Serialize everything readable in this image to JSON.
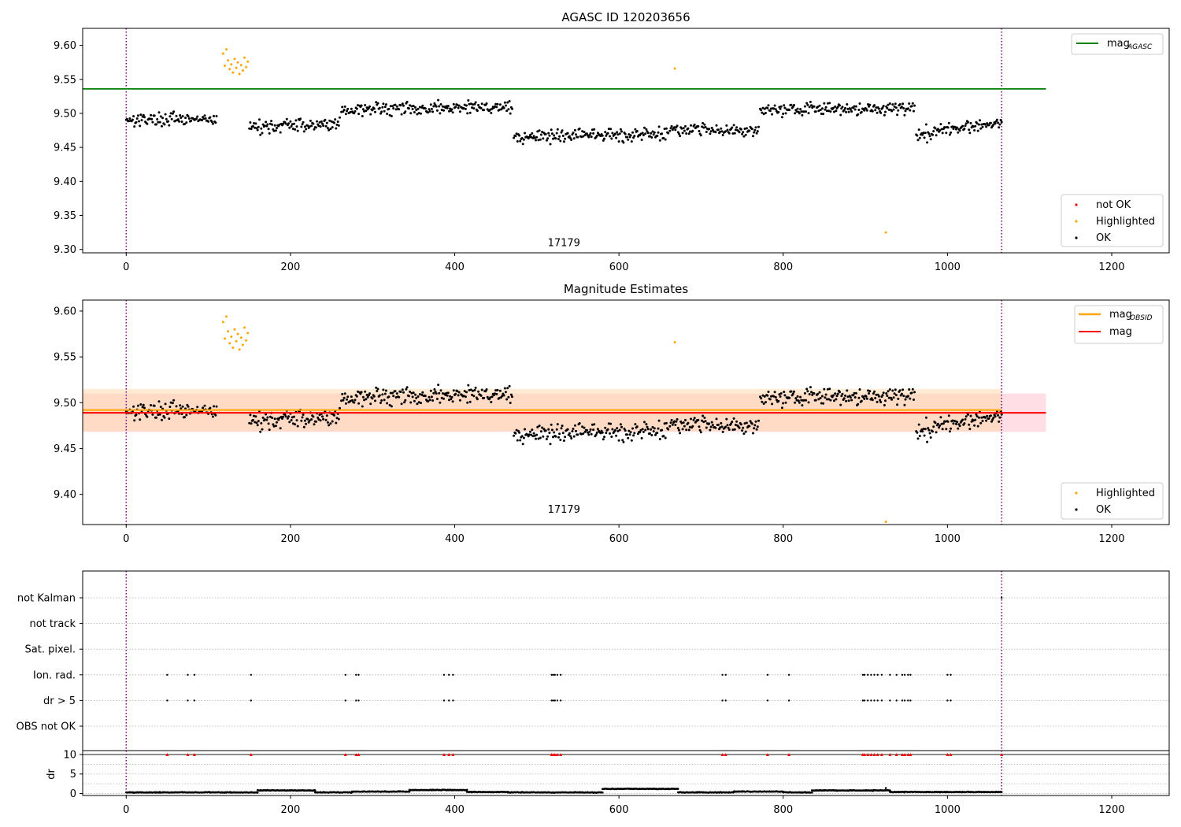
{
  "chart_data": [
    {
      "type": "scatter",
      "title": "AGASC ID 120203656",
      "xlim": [
        -53,
        1270
      ],
      "ylim": [
        9.295,
        9.625
      ],
      "xticks": [
        0,
        200,
        400,
        600,
        800,
        1000,
        1200
      ],
      "yticks": [
        9.3,
        9.35,
        9.4,
        9.45,
        9.5,
        9.55,
        9.6
      ],
      "grid": false,
      "annotation": {
        "text": "17179",
        "x": 533,
        "y": 9.305
      },
      "vlines": [
        0,
        1066
      ],
      "hline": {
        "name": "mag",
        "subscript": "AGASC",
        "y": 9.536,
        "xmax": 1120,
        "color": "#008000"
      },
      "legends": [
        {
          "placement": "top-right",
          "entries": [
            {
              "label": "mag",
              "subscript": "AGASC",
              "kind": "line",
              "color": "#008000"
            }
          ]
        },
        {
          "placement": "bottom-right",
          "entries": [
            {
              "label": "not OK",
              "kind": "marker",
              "color": "#ff0000"
            },
            {
              "label": "Highlighted",
              "kind": "marker",
              "color": "#ffa500"
            },
            {
              "label": "OK",
              "kind": "marker",
              "color": "#000000"
            }
          ]
        }
      ],
      "series": [
        {
          "name": "OK",
          "color": "#000000",
          "segments": [
            {
              "x": [
                0,
                110
              ],
              "y": [
                9.492,
                9.49
              ]
            },
            {
              "x": [
                150,
                260
              ],
              "y": [
                9.48,
                9.485
              ]
            },
            {
              "x": [
                262,
                470
              ],
              "y": [
                9.505,
                9.51
              ]
            },
            {
              "x": [
                472,
                660
              ],
              "y": [
                9.465,
                9.47
              ]
            },
            {
              "x": [
                662,
                770
              ],
              "y": [
                9.478,
                9.475
              ]
            },
            {
              "x": [
                772,
                960
              ],
              "y": [
                9.505,
                9.508
              ]
            },
            {
              "x": [
                962,
                1066
              ],
              "y": [
                9.468,
                9.488
              ]
            }
          ]
        },
        {
          "name": "Highlighted",
          "color": "#ffa500",
          "x": [
            118,
            120,
            122,
            124,
            126,
            128,
            130,
            132,
            134,
            136,
            138,
            140,
            142,
            144,
            146,
            148,
            668,
            925
          ],
          "y": [
            9.588,
            9.57,
            9.594,
            9.578,
            9.565,
            9.572,
            9.56,
            9.58,
            9.567,
            9.575,
            9.558,
            9.571,
            9.563,
            9.582,
            9.568,
            9.576,
            9.566,
            9.325
          ]
        }
      ]
    },
    {
      "type": "scatter",
      "title": "Magnitude Estimates",
      "xlim": [
        -53,
        1270
      ],
      "ylim": [
        9.367,
        9.612
      ],
      "xticks": [
        0,
        200,
        400,
        600,
        800,
        1000,
        1200
      ],
      "yticks": [
        9.4,
        9.45,
        9.5,
        9.55,
        9.6
      ],
      "grid": false,
      "annotation": {
        "text": "17179",
        "x": 533,
        "y": 9.38
      },
      "vlines": [
        0,
        1066
      ],
      "bands": [
        {
          "name": "mag",
          "ymin": 9.468,
          "ymax": 9.51,
          "xmax": 1120,
          "color": "#ffc0cb"
        },
        {
          "name": "mag OBSID",
          "ymin": 9.469,
          "ymax": 9.515,
          "xmax": 1066,
          "color": "#ffd7a8"
        }
      ],
      "lines": [
        {
          "name": "mag",
          "subscript": "OBSID",
          "y": 9.492,
          "xmax": 1066,
          "color": "#ffa500"
        },
        {
          "name": "mag",
          "y": 9.489,
          "xmax": 1120,
          "color": "#ff0000"
        }
      ],
      "legends": [
        {
          "placement": "top-right",
          "entries": [
            {
              "label": "mag",
              "subscript": "OBSID",
              "kind": "line",
              "color": "#ffa500"
            },
            {
              "label": "mag",
              "kind": "line",
              "color": "#ff0000"
            }
          ]
        },
        {
          "placement": "bottom-right",
          "entries": [
            {
              "label": "Highlighted",
              "kind": "marker",
              "color": "#ffa500"
            },
            {
              "label": "OK",
              "kind": "marker",
              "color": "#000000"
            }
          ]
        }
      ],
      "series": [
        {
          "name": "OK",
          "color": "#000000",
          "segments": [
            {
              "x": [
                0,
                110
              ],
              "y": [
                9.492,
                9.49
              ]
            },
            {
              "x": [
                150,
                260
              ],
              "y": [
                9.48,
                9.485
              ]
            },
            {
              "x": [
                262,
                470
              ],
              "y": [
                9.505,
                9.51
              ]
            },
            {
              "x": [
                472,
                660
              ],
              "y": [
                9.465,
                9.47
              ]
            },
            {
              "x": [
                662,
                770
              ],
              "y": [
                9.478,
                9.475
              ]
            },
            {
              "x": [
                772,
                960
              ],
              "y": [
                9.505,
                9.508
              ]
            },
            {
              "x": [
                962,
                1066
              ],
              "y": [
                9.468,
                9.488
              ]
            }
          ]
        },
        {
          "name": "Highlighted",
          "color": "#ffa500",
          "x": [
            118,
            120,
            122,
            124,
            126,
            128,
            130,
            132,
            134,
            136,
            138,
            140,
            142,
            144,
            146,
            148,
            668,
            925
          ],
          "y": [
            9.588,
            9.57,
            9.594,
            9.578,
            9.565,
            9.572,
            9.56,
            9.58,
            9.567,
            9.575,
            9.558,
            9.571,
            9.563,
            9.582,
            9.568,
            9.576,
            9.566,
            9.37
          ]
        }
      ]
    },
    {
      "type": "scatter",
      "title": "",
      "xlim": [
        -53,
        1270
      ],
      "xticks": [
        0,
        200,
        400,
        600,
        800,
        1000,
        1200
      ],
      "vlines": [
        0,
        1066
      ],
      "flags": {
        "categories": [
          "not Kalman",
          "not track",
          "Sat. pixel.",
          "Ion. rad.",
          "dr > 5",
          "OBS not OK"
        ],
        "x": [
          50,
          75,
          83,
          152,
          267,
          280,
          283,
          387,
          393,
          398,
          518,
          520,
          522,
          525,
          529,
          726,
          730,
          781,
          807,
          897,
          899,
          903,
          907,
          911,
          915,
          920,
          930,
          938,
          945,
          948,
          952,
          955,
          1000,
          1004
        ],
        "rows": [
          "Ion. rad.",
          "dr > 5"
        ],
        "extra": [
          {
            "row": "not Kalman",
            "x": 1066
          }
        ],
        "color": "#000000"
      },
      "dr": {
        "ylabel": "dr",
        "ylim": [
          -0.5,
          11
        ],
        "yticks": [
          0,
          5,
          10
        ],
        "threshold": 10,
        "gridlines": [
          0,
          2.5,
          5,
          7.5,
          10
        ],
        "markers": {
          "color": "#ff0000",
          "y": 10,
          "x": [
            50,
            75,
            83,
            152,
            267,
            280,
            283,
            387,
            393,
            398,
            518,
            520,
            522,
            525,
            529,
            726,
            730,
            781,
            807,
            897,
            899,
            903,
            907,
            911,
            915,
            920,
            930,
            938,
            945,
            948,
            952,
            955,
            1000,
            1004,
            1066
          ]
        },
        "segments": [
          {
            "x": [
              0,
              160
            ],
            "y": 0.3
          },
          {
            "x": [
              160,
              230
            ],
            "y": 0.8
          },
          {
            "x": [
              230,
              275
            ],
            "y": 0.3
          },
          {
            "x": [
              275,
              345
            ],
            "y": 0.5
          },
          {
            "x": [
              345,
              415
            ],
            "y": 0.9
          },
          {
            "x": [
              415,
              465
            ],
            "y": 0.4
          },
          {
            "x": [
              465,
              580
            ],
            "y": 0.3
          },
          {
            "x": [
              580,
              672
            ],
            "y": 1.2
          },
          {
            "x": [
              672,
              740
            ],
            "y": 0.3
          },
          {
            "x": [
              740,
              800
            ],
            "y": 0.5
          },
          {
            "x": [
              800,
              835
            ],
            "y": 0.3
          },
          {
            "x": [
              835,
              930
            ],
            "y": 0.8
          },
          {
            "x": [
              930,
              1066
            ],
            "y": 0.4
          }
        ],
        "outliers": [
          {
            "x": 925,
            "y": 1.4
          }
        ]
      }
    }
  ]
}
